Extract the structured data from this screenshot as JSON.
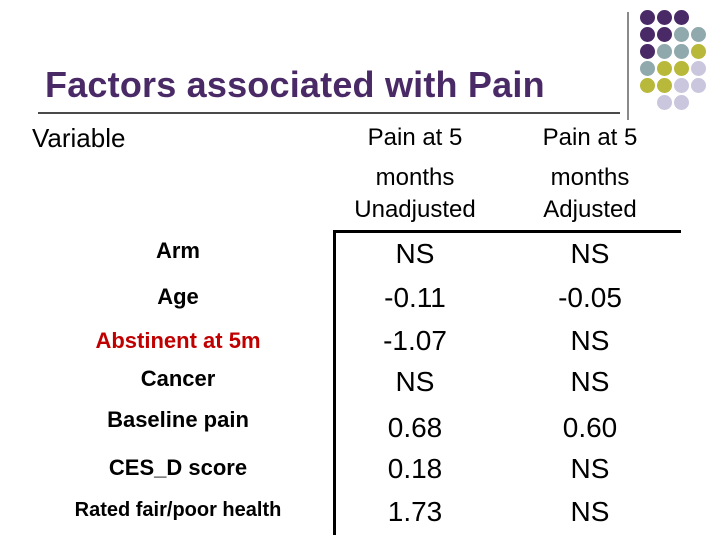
{
  "title": "Factors associated with Pain",
  "columns": {
    "variable": "Variable",
    "unadjusted": {
      "line1": "Pain at 5",
      "line2": "months",
      "line3": "Unadjusted"
    },
    "adjusted": {
      "line1": "Pain at 5",
      "line2": "months",
      "line3": "Adjusted"
    }
  },
  "rows": [
    {
      "label": "Arm",
      "unadjusted": "NS",
      "adjusted": "NS"
    },
    {
      "label": "Age",
      "unadjusted": "-0.11",
      "adjusted": "-0.05"
    },
    {
      "label": "Abstinent at 5m",
      "unadjusted": "-1.07",
      "adjusted": "NS"
    },
    {
      "label": "Cancer",
      "unadjusted": "NS",
      "adjusted": "NS"
    },
    {
      "label": "Baseline pain",
      "unadjusted": "0.68",
      "adjusted": "0.60"
    },
    {
      "label": "CES_D score",
      "unadjusted": "0.18",
      "adjusted": "NS"
    },
    {
      "label": "Rated fair/poor health",
      "unadjusted": "1.73",
      "adjusted": "NS"
    }
  ],
  "colors": {
    "title": "#4a2a66",
    "highlight_row": "#c00000",
    "dot_purple": "#4a2a66",
    "dot_teal": "#8fa9ad",
    "dot_olive": "#b8b83a",
    "dot_lavender": "#c9c6dd"
  }
}
